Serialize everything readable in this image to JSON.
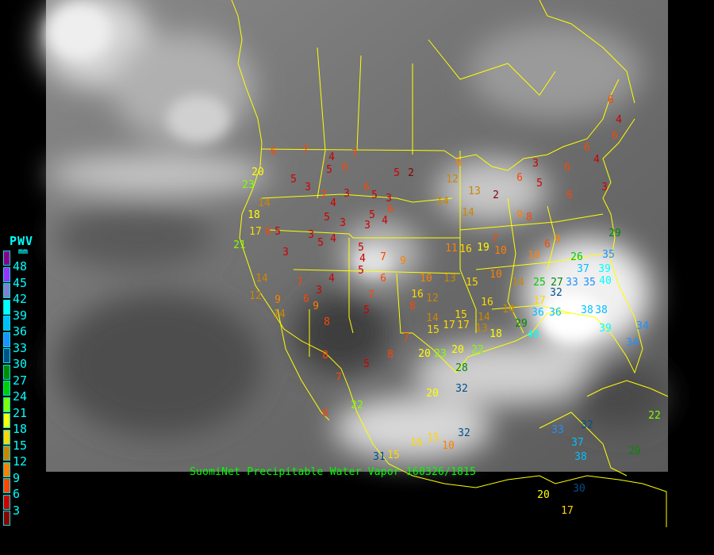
{
  "legend": {
    "title": "PWV",
    "unit": "mm",
    "ticks": [
      "48",
      "45",
      "42",
      "39",
      "36",
      "33",
      "30",
      "27",
      "24",
      "21",
      "18",
      "15",
      "12",
      "9",
      "6",
      "3"
    ],
    "colors": [
      "#8b008b",
      "#9b30ff",
      "#8080d0",
      "#00ffff",
      "#00bfff",
      "#1e90ff",
      "#00508c",
      "#008b00",
      "#00cd00",
      "#7fff00",
      "#ffff00",
      "#ffd700",
      "#cd8500",
      "#ff8000",
      "#ff4500",
      "#cd0000",
      "#8b0000"
    ]
  },
  "caption": "SuomiNet Precipitable Water Vapor 160326/1815",
  "colors": {
    "boundaries": "#ffff00",
    "caption": "#00ff00",
    "legend_text": "#00ffff"
  },
  "stations": [
    6,
    4,
    6,
    6,
    4,
    6,
    3,
    6,
    2,
    6,
    5,
    3,
    12,
    9,
    14,
    14,
    13,
    2,
    5,
    7,
    4,
    6,
    5,
    7,
    6,
    3,
    5,
    6,
    3,
    4,
    5,
    3,
    3,
    5,
    6,
    7,
    3,
    4,
    5,
    3,
    5,
    4,
    5,
    4,
    5,
    7,
    9,
    6,
    7,
    5,
    8,
    7,
    8,
    5,
    8,
    7,
    4,
    3,
    9,
    8,
    6,
    20,
    23,
    14,
    18,
    17,
    21,
    14,
    12,
    9,
    14,
    7,
    5,
    3,
    6,
    11,
    16,
    19,
    13,
    15,
    10,
    12,
    16,
    14,
    17,
    17,
    15,
    20,
    23,
    20,
    28,
    32,
    20,
    15,
    14,
    16,
    13,
    10,
    10,
    10,
    9,
    6,
    7,
    9,
    8,
    17,
    14,
    25,
    27,
    32,
    33,
    35,
    37,
    39,
    40,
    26,
    35,
    29,
    38,
    38,
    39,
    36,
    36,
    29,
    40,
    34,
    34,
    14,
    18,
    22,
    22,
    6,
    16,
    15,
    32,
    31,
    15,
    10,
    37,
    33,
    32,
    38,
    30,
    29,
    20,
    17,
    22
  ]
}
